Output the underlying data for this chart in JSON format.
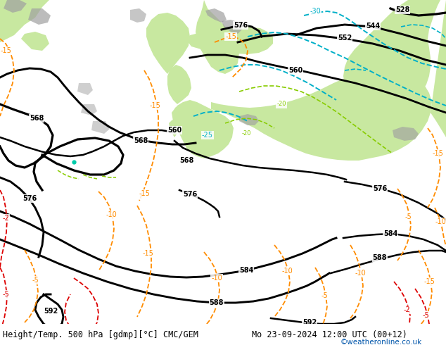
{
  "title_left": "Height/Temp. 500 hPa [gdmp][°C] CMC/GEM",
  "title_right": "Mo 23-09-2024 12:00 UTC (00+12)",
  "credit": "©weatheronline.co.uk",
  "bg_color": "#ffffff",
  "ocean_color": "#d8d8d8",
  "land_color": "#c8e8a0",
  "mountain_color": "#a0a0a0",
  "text_color": "#000000",
  "credit_color": "#0055aa",
  "title_fontsize": 8.5,
  "credit_fontsize": 7.5,
  "fig_width": 6.34,
  "fig_height": 4.9,
  "dpi": 100,
  "contour_lw": 1.8,
  "temp_lw": 1.4,
  "anom_lw": 1.3
}
